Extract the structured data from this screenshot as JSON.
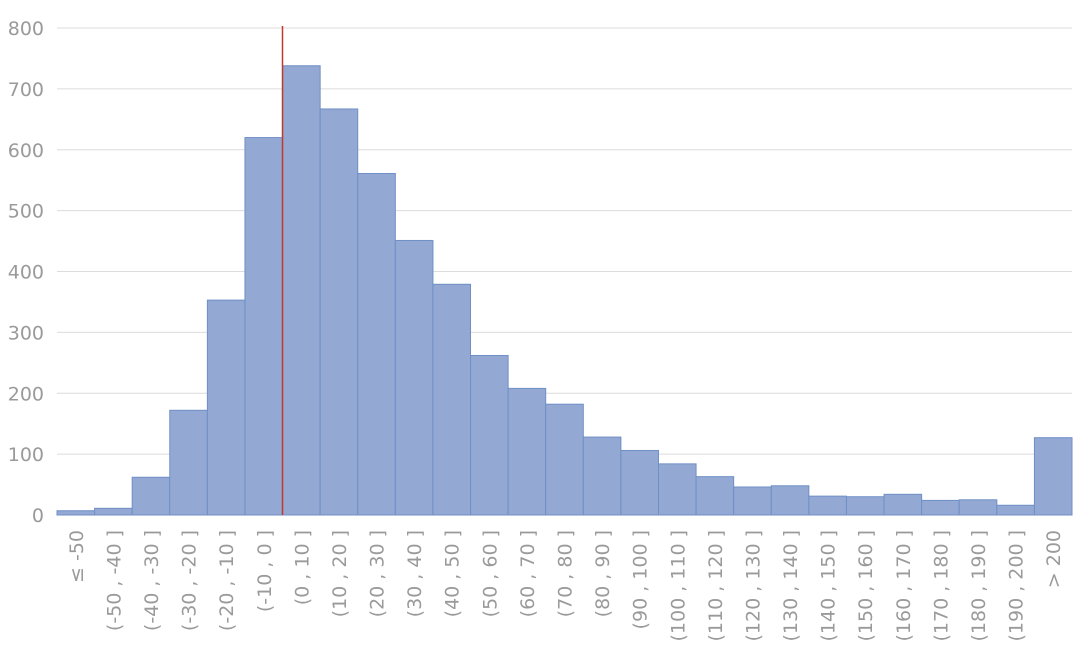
{
  "chart_data": {
    "type": "bar",
    "categories": [
      "≤ -50",
      "(-50 , -40 ]",
      "(-40 , -30 ]",
      "(-30 , -20 ]",
      "(-20 , -10 ]",
      "(-10 , 0 ]",
      "(0 , 10 ]",
      "(10 , 20 ]",
      "(20 , 30 ]",
      "(30 , 40 ]",
      "(40 , 50 ]",
      "(50 , 60 ]",
      "(60 , 70 ]",
      "(70 , 80 ]",
      "(80 , 90 ]",
      "(90 , 100 ]",
      "(100 , 110 ]",
      "(110 , 120 ]",
      "(120 , 130 ]",
      "(130 , 140 ]",
      "(140 , 150 ]",
      "(150 , 160 ]",
      "(160 , 170 ]",
      "(170 , 180 ]",
      "(180 , 190 ]",
      "(190 , 200 ]",
      "> 200"
    ],
    "values": [
      7,
      11,
      62,
      172,
      353,
      620,
      738,
      667,
      561,
      451,
      379,
      262,
      208,
      182,
      128,
      106,
      84,
      63,
      46,
      48,
      31,
      30,
      34,
      24,
      25,
      16,
      127
    ],
    "color": "#93a9d4",
    "ylim": [
      0,
      800
    ],
    "yticks": [
      0,
      100,
      200,
      300,
      400,
      500,
      600,
      700,
      800
    ],
    "grid": true
  }
}
